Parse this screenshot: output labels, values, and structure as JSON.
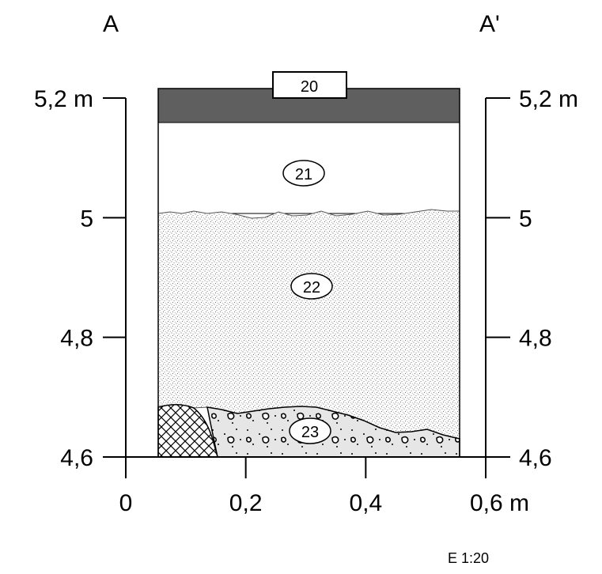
{
  "section": {
    "left_label": "A",
    "right_label": "A'",
    "scale": "E 1:20"
  },
  "y_axis": {
    "unit": "m",
    "range": [
      4.6,
      5.2
    ],
    "ticks": [
      {
        "value": 5.2,
        "label": "5,2 m"
      },
      {
        "value": 5.0,
        "label": "5"
      },
      {
        "value": 4.8,
        "label": "4,8"
      },
      {
        "value": 4.6,
        "label": "4,6"
      }
    ]
  },
  "x_axis": {
    "unit": "m",
    "range": [
      0,
      0.6
    ],
    "ticks": [
      {
        "value": 0,
        "label": "0"
      },
      {
        "value": 0.2,
        "label": "0,2"
      },
      {
        "value": 0.4,
        "label": "0,4"
      },
      {
        "value": 0.6,
        "label": "0,6 m"
      }
    ]
  },
  "layers": [
    {
      "id": "20",
      "label": "20",
      "description_color": "#5f5f5f"
    },
    {
      "id": "21",
      "label": "21"
    },
    {
      "id": "22",
      "label": "22"
    },
    {
      "id": "23",
      "label": "23"
    }
  ]
}
